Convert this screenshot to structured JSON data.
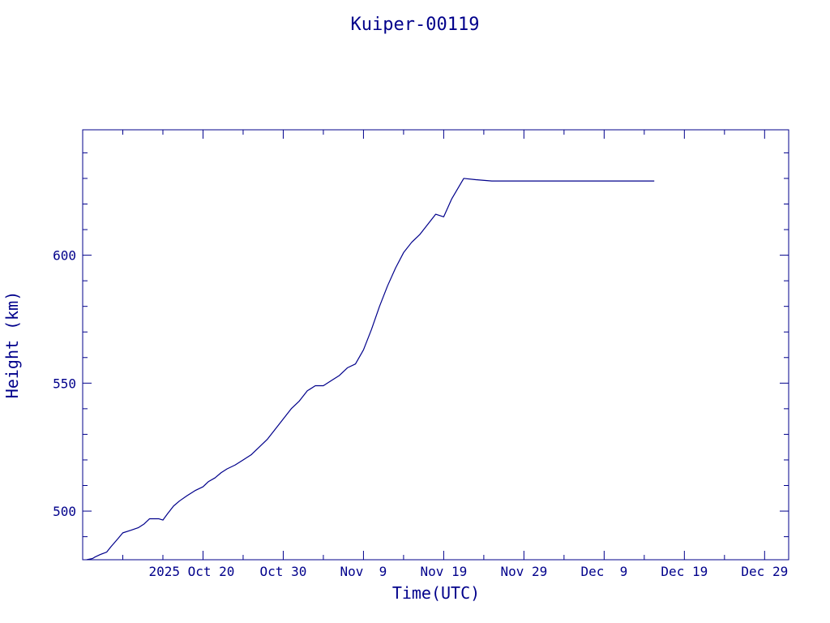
{
  "chart_data": {
    "type": "line",
    "title": "Kuiper-00119",
    "xlabel": "Time(UTC)",
    "ylabel": "Height (km)",
    "ylim": [
      481,
      649
    ],
    "xlim": [
      "2025-10-05",
      "2026-01-01"
    ],
    "grid": false,
    "colors": {
      "axis": "#00008b",
      "line": "#00008b",
      "background": "#ffffff"
    },
    "x_ticks": [
      {
        "label": "2025 Oct 20",
        "date": "2025-10-20"
      },
      {
        "label": "Oct 30",
        "date": "2025-10-30"
      },
      {
        "label": "Nov  9",
        "date": "2025-11-09"
      },
      {
        "label": "Nov 19",
        "date": "2025-11-19"
      },
      {
        "label": "Nov 29",
        "date": "2025-11-29"
      },
      {
        "label": "Dec  9",
        "date": "2025-12-09"
      },
      {
        "label": "Dec 19",
        "date": "2025-12-19"
      },
      {
        "label": "Dec 29",
        "date": "2025-12-29"
      }
    ],
    "y_ticks": [
      {
        "label": "500",
        "value": 500
      },
      {
        "label": "550",
        "value": 550
      },
      {
        "label": "600",
        "value": 600
      }
    ],
    "series": [
      {
        "x": [
          "2025-10-05T12:00",
          "2025-10-06T06:00",
          "2025-10-06T12:00",
          "2025-10-07T04:00",
          "2025-10-08T00:00",
          "2025-10-08T12:00",
          "2025-10-09T08:00",
          "2025-10-10T00:00",
          "2025-10-11T00:00",
          "2025-10-11T22:00",
          "2025-10-12T16:00",
          "2025-10-13T08:00",
          "2025-10-13T20:00",
          "2025-10-14T12:00",
          "2025-10-15T00:00",
          "2025-10-15T14:00",
          "2025-10-16T08:00",
          "2025-10-17T02:00",
          "2025-10-18T00:00",
          "2025-10-19T00:00",
          "2025-10-20T00:00",
          "2025-10-20T16:00",
          "2025-10-21T12:00",
          "2025-10-22T06:00",
          "2025-10-23T00:00",
          "2025-10-24T00:00",
          "2025-10-25T00:00",
          "2025-10-26T00:00",
          "2025-10-27T00:00",
          "2025-10-28T00:00",
          "2025-10-29T00:00",
          "2025-10-30T00:00",
          "2025-10-31T00:00",
          "2025-11-01T00:00",
          "2025-11-02T00:00",
          "2025-11-03T00:00",
          "2025-11-04T00:00",
          "2025-11-05T00:00",
          "2025-11-06T00:00",
          "2025-11-07T00:00",
          "2025-11-08T00:00",
          "2025-11-09T00:00",
          "2025-11-10T00:00",
          "2025-11-11T00:00",
          "2025-11-12T00:00",
          "2025-11-13T00:00",
          "2025-11-14T00:00",
          "2025-11-15T00:00",
          "2025-11-16T00:00",
          "2025-11-17T00:00",
          "2025-11-18T00:00",
          "2025-11-19T00:00",
          "2025-11-20T00:00",
          "2025-11-21T12:00",
          "2025-11-23T00:00",
          "2025-11-25T00:00",
          "2025-11-29T00:00",
          "2025-12-03T00:00",
          "2025-12-07T00:00",
          "2025-12-10T00:00",
          "2025-12-13T00:00",
          "2025-12-15T06:00"
        ],
        "y": [
          481,
          481.5,
          482,
          483,
          484,
          486,
          489,
          491.5,
          492.5,
          493.5,
          495,
          497,
          497,
          497,
          496.5,
          499,
          502,
          504,
          506,
          508,
          509.5,
          511.5,
          513,
          515,
          516.5,
          518,
          520,
          522,
          525,
          528,
          532,
          536,
          540,
          543,
          547,
          549,
          549,
          551,
          553,
          556,
          557.5,
          563,
          571,
          580,
          588,
          595,
          601,
          605,
          608,
          612,
          616,
          615,
          622,
          630,
          629.5,
          629,
          629,
          629,
          629,
          629,
          629,
          629
        ]
      }
    ]
  }
}
